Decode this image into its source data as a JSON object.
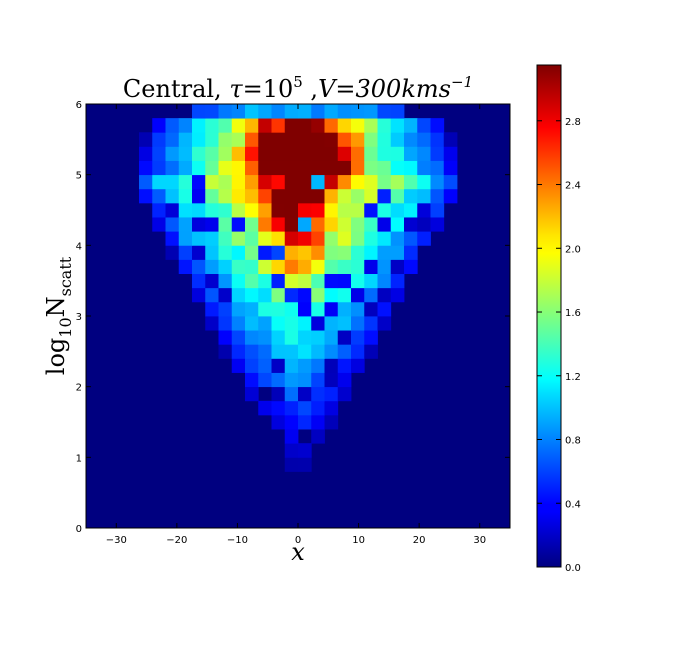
{
  "chart_data": {
    "type": "heatmap",
    "title": {
      "prefix": "Central, ",
      "tau_symbol": "τ",
      "tau_eq": "=10",
      "tau_exp": "5",
      "sep": " ,",
      "v_text": "V=300",
      "unit": "kms",
      "unit_exp": "−1"
    },
    "xlabel": "x",
    "ylabel": {
      "log": "log",
      "log_sub": "10",
      "N": "N",
      "N_sub": "scatt"
    },
    "xlim": [
      -35,
      35
    ],
    "ylim": [
      0,
      6
    ],
    "xticks": [
      -30,
      -20,
      -10,
      0,
      10,
      20,
      30
    ],
    "xtick_labels": [
      "−30",
      "−20",
      "−10",
      "0",
      "10",
      "20",
      "30"
    ],
    "yticks": [
      0,
      1,
      2,
      3,
      4,
      5,
      6
    ],
    "ytick_labels": [
      "0",
      "1",
      "2",
      "3",
      "4",
      "5",
      "6"
    ],
    "colormap": "jet",
    "colorbar": {
      "vmin": 0.0,
      "vmax": 3.15,
      "ticks": [
        0.0,
        0.4,
        0.8,
        1.2,
        1.6,
        2.0,
        2.4,
        2.8
      ],
      "tick_labels": [
        "0.0",
        "0.4",
        "0.8",
        "1.2",
        "1.6",
        "2.0",
        "2.4",
        "2.8"
      ]
    },
    "bins": {
      "nx": 32,
      "ny": 30,
      "x_start": -35,
      "x_end": 35,
      "y_start": 0,
      "y_end": 6
    },
    "values_description_note": "",
    "z_model": {
      "peak": 3.15,
      "core_center": [
        0.0,
        5.2
      ],
      "noise_seed": 7
    }
  }
}
